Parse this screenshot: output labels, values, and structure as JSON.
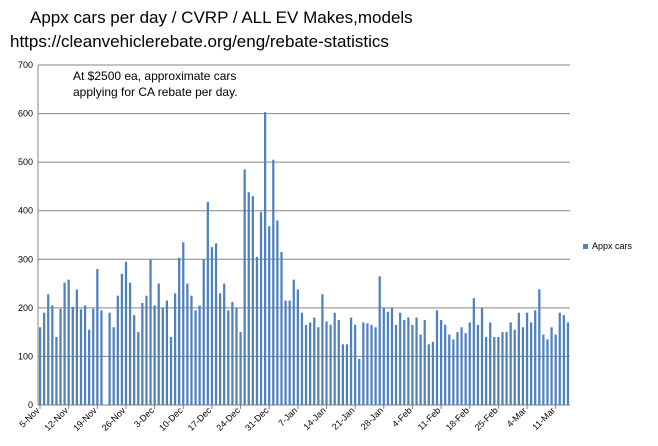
{
  "titles": {
    "line1": "Appx cars per day / CVRP / ALL EV Makes,models",
    "line2": "https://cleanvehiclerebate.org/eng/rebate-statistics"
  },
  "chart_data": {
    "type": "bar",
    "title": "Appx cars per day / CVRP / ALL EV Makes,models",
    "subtitle": "https://cleanvehiclerebate.org/eng/rebate-statistics",
    "annotation_lines": [
      "At $2500 ea, approximate cars",
      "applying for CA rebate per day."
    ],
    "ylim": [
      0,
      700
    ],
    "yticks": [
      0,
      100,
      200,
      300,
      400,
      500,
      600,
      700
    ],
    "grid": true,
    "legend_position": "right",
    "bar_color": "#4f81bd",
    "x_tick_labels": [
      "5-Nov",
      "12-Nov",
      "19-Nov",
      "26-Nov",
      "3-Dec",
      "10-Dec",
      "17-Dec",
      "24-Dec",
      "31-Dec",
      "7-Jan",
      "14-Jan",
      "21-Jan",
      "28-Jan",
      "4-Feb",
      "11-Feb",
      "18-Feb",
      "25-Feb",
      "4-Mar",
      "11-Mar"
    ],
    "start_label": "5-Nov",
    "series": [
      {
        "name": "Appx cars",
        "values": [
          160,
          190,
          228,
          205,
          140,
          198,
          252,
          258,
          202,
          238,
          197,
          205,
          155,
          198,
          280,
          195,
          0,
          190,
          160,
          225,
          270,
          295,
          252,
          185,
          150,
          210,
          225,
          300,
          205,
          250,
          200,
          215,
          140,
          230,
          303,
          335,
          250,
          225,
          195,
          205,
          300,
          418,
          325,
          333,
          230,
          250,
          195,
          212,
          200,
          150,
          485,
          438,
          430,
          305,
          397,
          603,
          368,
          505,
          380,
          315,
          215,
          215,
          258,
          238,
          190,
          165,
          170,
          180,
          160,
          228,
          172,
          165,
          190,
          175,
          125,
          125,
          180,
          165,
          95,
          170,
          168,
          165,
          160,
          265,
          200,
          192,
          200,
          165,
          190,
          175,
          180,
          165,
          180,
          145,
          175,
          125,
          130,
          195,
          175,
          165,
          145,
          135,
          150,
          160,
          148,
          170,
          220,
          165,
          200,
          140,
          170,
          140,
          140,
          150,
          150,
          170,
          155,
          190,
          160,
          190,
          170,
          195,
          238,
          145,
          135,
          160,
          145,
          190,
          185,
          170
        ]
      }
    ]
  }
}
